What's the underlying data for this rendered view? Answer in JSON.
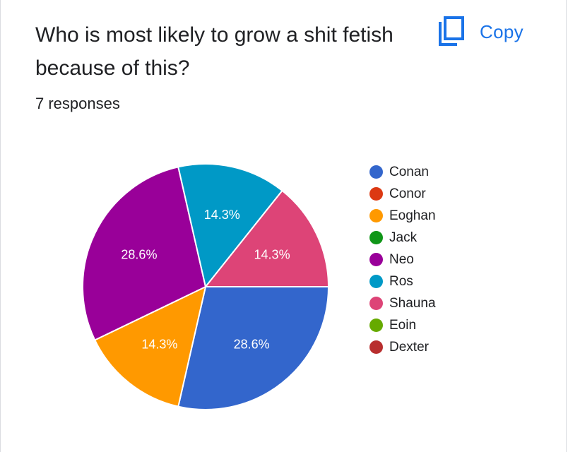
{
  "question": {
    "title": "Who is most likely to grow a shit fetish because of this?",
    "responses": "7 responses"
  },
  "toolbar": {
    "copy_label": "Copy",
    "copy_icon": "copy-icon"
  },
  "chart_data": {
    "type": "pie",
    "title": "",
    "slices": [
      {
        "label": "Conan",
        "value": 2,
        "percent": "28.6%",
        "color": "#3366cc"
      },
      {
        "label": "Conor",
        "value": 0,
        "percent": "",
        "color": "#dc3912"
      },
      {
        "label": "Eoghan",
        "value": 1,
        "percent": "14.3%",
        "color": "#ff9900"
      },
      {
        "label": "Jack",
        "value": 0,
        "percent": "",
        "color": "#109618"
      },
      {
        "label": "Neo",
        "value": 2,
        "percent": "28.6%",
        "color": "#990099"
      },
      {
        "label": "Ros",
        "value": 1,
        "percent": "14.3%",
        "color": "#0099c6"
      },
      {
        "label": "Shauna",
        "value": 1,
        "percent": "14.3%",
        "color": "#dd4477"
      },
      {
        "label": "Eoin",
        "value": 0,
        "percent": "",
        "color": "#66aa00"
      },
      {
        "label": "Dexter",
        "value": 0,
        "percent": "",
        "color": "#b82e2e"
      }
    ],
    "legend_position": "right"
  }
}
